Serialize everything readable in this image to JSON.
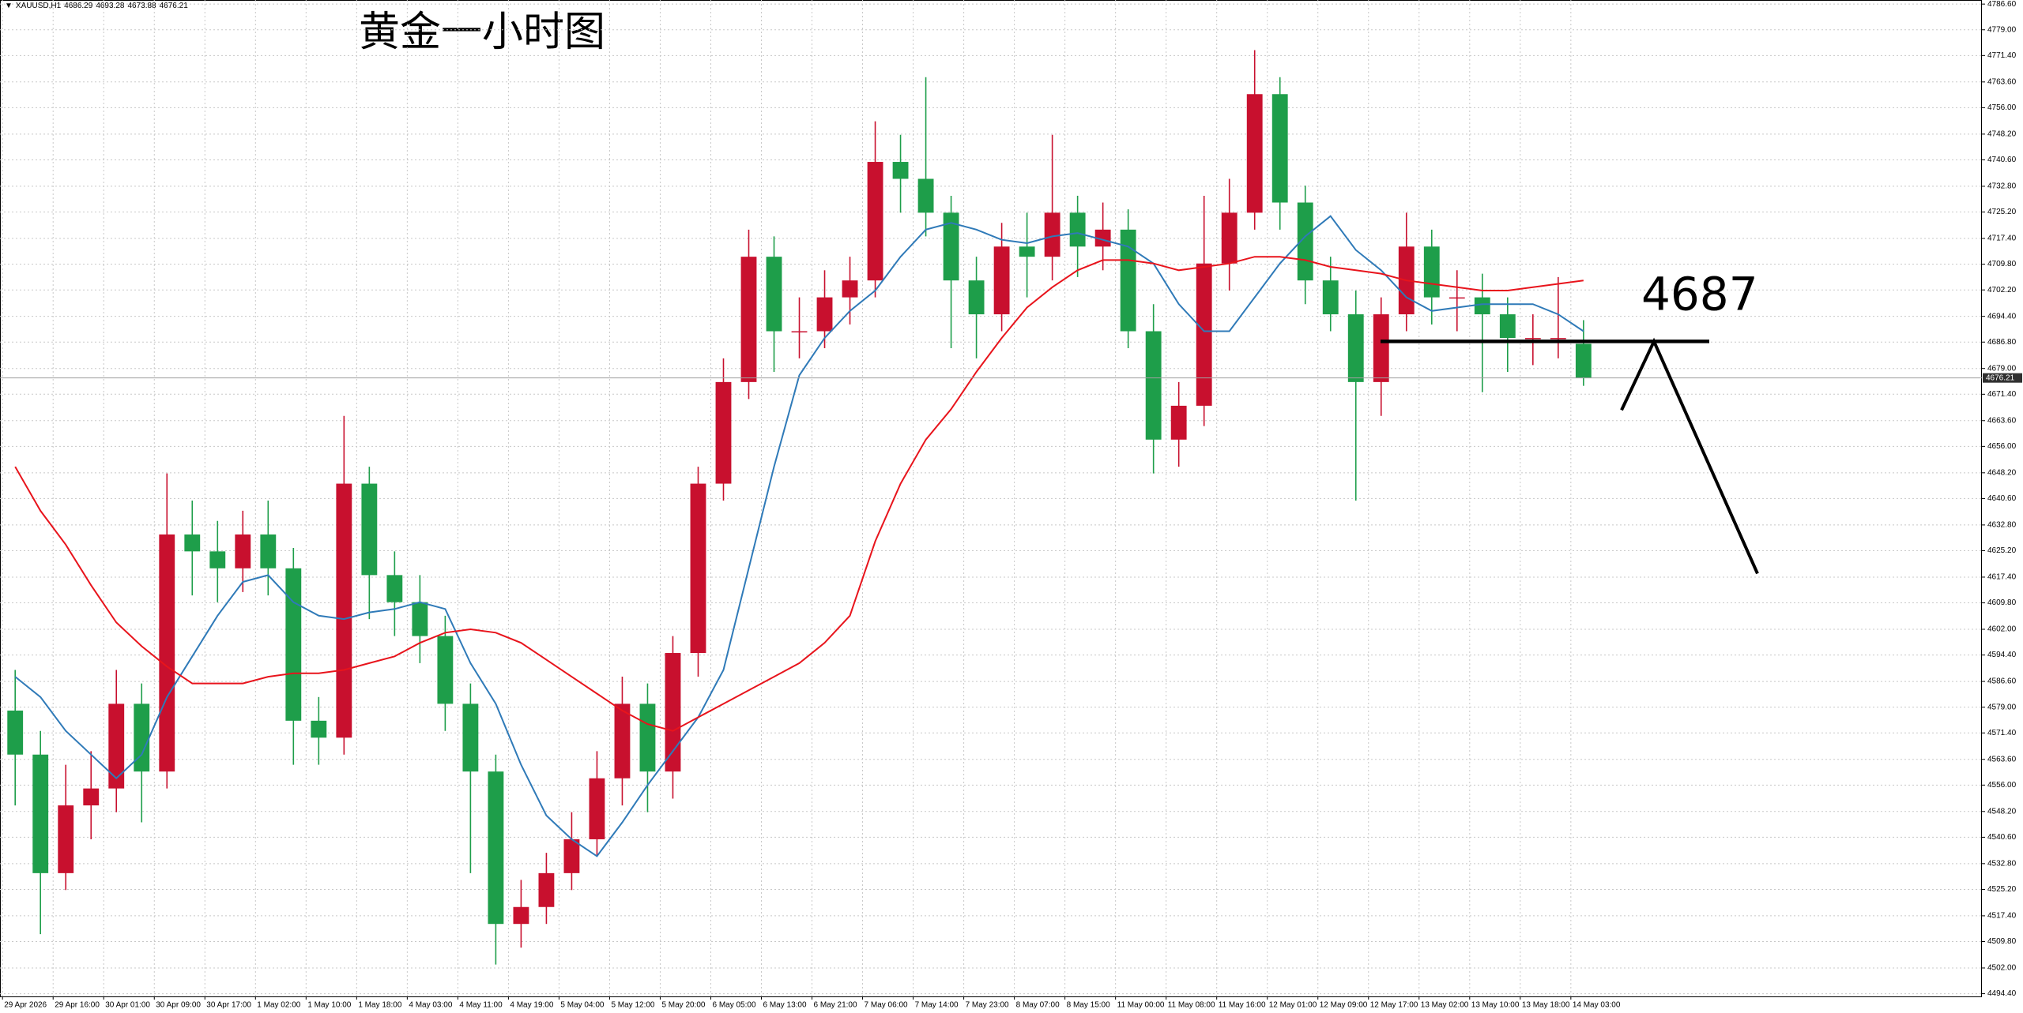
{
  "chart_data": {
    "type": "candlestick",
    "title": "黄金一小时图",
    "symbol": "XAUUSD,H1",
    "annotation": 4687,
    "x": [
      2,
      6,
      10,
      14,
      18,
      22,
      26,
      30,
      34,
      38,
      42,
      46,
      50,
      54,
      58,
      62,
      66,
      70,
      74,
      78,
      82,
      86,
      90,
      94,
      98,
      102,
      106,
      110,
      114,
      118,
      122,
      126,
      130,
      134,
      138,
      142,
      146,
      150,
      154,
      158,
      162,
      166,
      170,
      174,
      178,
      182,
      186,
      190,
      194,
      198,
      202,
      206,
      210,
      214,
      218,
      222,
      226,
      230,
      234,
      238,
      242,
      246,
      250
    ],
    "open": [
      4578,
      4565,
      4530,
      4550,
      4555,
      4580,
      4560,
      4630,
      4625,
      4620,
      4630,
      4620,
      4575,
      4570,
      4645,
      4618,
      4610,
      4600,
      4580,
      4560,
      4515,
      4520,
      4530,
      4540,
      4558,
      4580,
      4560,
      4595,
      4645,
      4675,
      4712,
      4690,
      4690,
      4700,
      4705,
      4740,
      4735,
      4725,
      4705,
      4695,
      4715,
      4712,
      4725,
      4715,
      4720,
      4690,
      4658,
      4668,
      4710,
      4725,
      4760,
      4728,
      4705,
      4695,
      4675,
      4695,
      4715,
      4700,
      4700,
      4695,
      4688,
      4688,
      4686.29
    ],
    "high": [
      4590,
      4572,
      4562,
      4566,
      4590,
      4586,
      4648,
      4640,
      4634,
      4637,
      4640,
      4626,
      4582,
      4665,
      4650,
      4625,
      4618,
      4606,
      4586,
      4565,
      4528,
      4536,
      4548,
      4566,
      4588,
      4586,
      4600,
      4650,
      4682,
      4720,
      4718,
      4700,
      4708,
      4712,
      4752,
      4748,
      4765,
      4730,
      4712,
      4722,
      4725,
      4748,
      4730,
      4728,
      4726,
      4698,
      4675,
      4730,
      4735,
      4773,
      4765,
      4733,
      4712,
      4702,
      4700,
      4725,
      4720,
      4708,
      4707,
      4700,
      4695,
      4706,
      4693.28
    ],
    "low": [
      4550,
      4512,
      4525,
      4540,
      4548,
      4545,
      4555,
      4612,
      4610,
      4613,
      4612,
      4562,
      4562,
      4565,
      4605,
      4600,
      4592,
      4572,
      4530,
      4503,
      4508,
      4515,
      4525,
      4535,
      4550,
      4548,
      4552,
      4588,
      4640,
      4670,
      4678,
      4682,
      4685,
      4692,
      4700,
      4725,
      4718,
      4685,
      4682,
      4690,
      4700,
      4705,
      4706,
      4708,
      4685,
      4648,
      4650,
      4662,
      4702,
      4720,
      4720,
      4698,
      4690,
      4640,
      4665,
      4690,
      4692,
      4690,
      4672,
      4678,
      4680,
      4682,
      4673.88
    ],
    "close": [
      4565,
      4530,
      4550,
      4555,
      4580,
      4560,
      4630,
      4625,
      4620,
      4630,
      4620,
      4575,
      4570,
      4645,
      4618,
      4610,
      4600,
      4580,
      4560,
      4515,
      4520,
      4530,
      4540,
      4558,
      4580,
      4560,
      4595,
      4645,
      4675,
      4712,
      4690,
      4690,
      4700,
      4705,
      4740,
      4735,
      4725,
      4705,
      4695,
      4715,
      4712,
      4725,
      4715,
      4720,
      4690,
      4658,
      4668,
      4710,
      4725,
      4760,
      4728,
      4705,
      4695,
      4675,
      4695,
      4715,
      4700,
      4700,
      4695,
      4688,
      4688,
      4688,
      4676.21
    ],
    "up_color": "#c8102e",
    "down_color": "#1e9e4a",
    "moving_averages": [
      {
        "color": "#2f7ab8",
        "values": [
          4588,
          4582,
          4572,
          4565,
          4558,
          4565,
          4582,
          4594,
          4606,
          4616,
          4618,
          4610,
          4606,
          4605,
          4607,
          4608,
          4610,
          4608,
          4592,
          4580,
          4562,
          4547,
          4540,
          4535,
          4545,
          4556,
          4566,
          4576,
          4590,
          4620,
          4650,
          4677,
          4688,
          4696,
          4702,
          4712,
          4720,
          4722,
          4720,
          4717,
          4716,
          4718,
          4719,
          4717,
          4715,
          4710,
          4698,
          4690,
          4690,
          4700,
          4710,
          4718,
          4724,
          4714,
          4708,
          4700,
          4696,
          4697,
          4698,
          4698,
          4698,
          4695,
          4690
        ]
      },
      {
        "color": "#e8141c",
        "values": [
          4650,
          4637,
          4627,
          4615,
          4604,
          4597,
          4591,
          4586,
          4586,
          4586,
          4588,
          4589,
          4589,
          4590,
          4592,
          4594,
          4598,
          4601,
          4602,
          4601,
          4598,
          4593,
          4588,
          4583,
          4578,
          4574,
          4572,
          4576,
          4580,
          4584,
          4588,
          4592,
          4598,
          4606,
          4628,
          4645,
          4658,
          4667,
          4678,
          4688,
          4697,
          4703,
          4708,
          4711,
          4711,
          4710,
          4708,
          4709,
          4710,
          4712,
          4712,
          4711,
          4709,
          4708,
          4707,
          4705,
          4704,
          4703,
          4702,
          4702,
          4703,
          4704,
          4705
        ]
      }
    ],
    "xlim": [
      -0.4,
      313
    ],
    "ylim": [
      4493.6,
      4787.8
    ],
    "grid": true,
    "xticks": [
      {
        "value": 0,
        "label": "29 Apr 2026"
      },
      {
        "value": 8,
        "label": "29 Apr 16:00"
      },
      {
        "value": 16,
        "label": "30 Apr 01:00"
      },
      {
        "value": 24,
        "label": "30 Apr 09:00"
      },
      {
        "value": 32,
        "label": "30 Apr 17:00"
      },
      {
        "value": 40,
        "label": "1 May 02:00"
      },
      {
        "value": 48,
        "label": "1 May 10:00"
      },
      {
        "value": 56,
        "label": "1 May 18:00"
      },
      {
        "value": 64,
        "label": "4 May 03:00"
      },
      {
        "value": 72,
        "label": "4 May 11:00"
      },
      {
        "value": 80,
        "label": "4 May 19:00"
      },
      {
        "value": 88,
        "label": "5 May 04:00"
      },
      {
        "value": 96,
        "label": "5 May 12:00"
      },
      {
        "value": 104,
        "label": "5 May 20:00"
      },
      {
        "value": 112,
        "label": "6 May 05:00"
      },
      {
        "value": 120,
        "label": "6 May 13:00"
      },
      {
        "value": 128,
        "label": "6 May 21:00"
      },
      {
        "value": 136,
        "label": "7 May 06:00"
      },
      {
        "value": 144,
        "label": "7 May 14:00"
      },
      {
        "value": 152,
        "label": "7 May 23:00"
      },
      {
        "value": 160,
        "label": "8 May 07:00"
      },
      {
        "value": 168,
        "label": "8 May 15:00"
      },
      {
        "value": 176,
        "label": "11 May 00:00"
      },
      {
        "value": 184,
        "label": "11 May 08:00"
      },
      {
        "value": 192,
        "label": "11 May 16:00"
      },
      {
        "value": 200,
        "label": "12 May 01:00"
      },
      {
        "value": 208,
        "label": "12 May 09:00"
      },
      {
        "value": 216,
        "label": "12 May 17:00"
      },
      {
        "value": 224,
        "label": "13 May 02:00"
      },
      {
        "value": 232,
        "label": "13 May 10:00"
      },
      {
        "value": 240,
        "label": "13 May 18:00"
      },
      {
        "value": 248,
        "label": "14 May 03:00"
      }
    ],
    "yticks": [
      {
        "value": 4786.6,
        "label": "4786.60"
      },
      {
        "value": 4779,
        "label": "4779.00"
      },
      {
        "value": 4771.4,
        "label": "4771.40"
      },
      {
        "value": 4763.6,
        "label": "4763.60"
      },
      {
        "value": 4756,
        "label": "4756.00"
      },
      {
        "value": 4748.2,
        "label": "4748.20"
      },
      {
        "value": 4740.6,
        "label": "4740.60"
      },
      {
        "value": 4732.8,
        "label": "4732.80"
      },
      {
        "value": 4725.2,
        "label": "4725.20"
      },
      {
        "value": 4717.4,
        "label": "4717.40"
      },
      {
        "value": 4709.8,
        "label": "4709.80"
      },
      {
        "value": 4702.2,
        "label": "4702.20"
      },
      {
        "value": 4694.4,
        "label": "4694.40"
      },
      {
        "value": 4686.8,
        "label": "4686.80"
      },
      {
        "value": 4679,
        "label": "4679.00"
      },
      {
        "value": 4671.4,
        "label": "4671.40"
      },
      {
        "value": 4663.6,
        "label": "4663.60"
      },
      {
        "value": 4656,
        "label": "4656.00"
      },
      {
        "value": 4648.2,
        "label": "4648.20"
      },
      {
        "value": 4640.6,
        "label": "4640.60"
      },
      {
        "value": 4632.8,
        "label": "4632.80"
      },
      {
        "value": 4625.2,
        "label": "4625.20"
      },
      {
        "value": 4617.4,
        "label": "4617.40"
      },
      {
        "value": 4609.8,
        "label": "4609.80"
      },
      {
        "value": 4602,
        "label": "4602.00"
      },
      {
        "value": 4594.4,
        "label": "4594.40"
      },
      {
        "value": 4586.6,
        "label": "4586.60"
      },
      {
        "value": 4579,
        "label": "4579.00"
      },
      {
        "value": 4571.4,
        "label": "4571.40"
      },
      {
        "value": 4563.6,
        "label": "4563.60"
      },
      {
        "value": 4556,
        "label": "4556.00"
      },
      {
        "value": 4548.2,
        "label": "4548.20"
      },
      {
        "value": 4540.6,
        "label": "4540.60"
      },
      {
        "value": 4532.8,
        "label": "4532.80"
      },
      {
        "value": 4525.2,
        "label": "4525.20"
      },
      {
        "value": 4517.4,
        "label": "4517.40"
      },
      {
        "value": 4509.8,
        "label": "4509.80"
      },
      {
        "value": 4502,
        "label": "4502.00"
      },
      {
        "value": 4494.4,
        "label": "4494.40"
      }
    ]
  }
}
